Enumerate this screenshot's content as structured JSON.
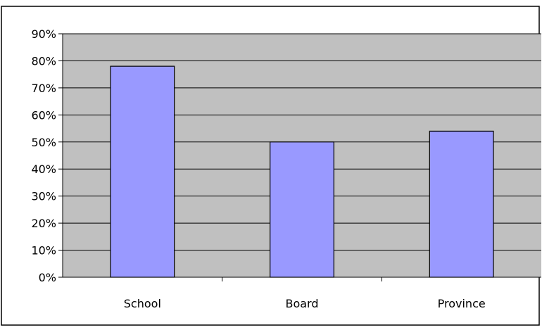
{
  "chart_data": {
    "type": "bar",
    "categories": [
      "School",
      "Board",
      "Province"
    ],
    "values": [
      0.78,
      0.5,
      0.54
    ],
    "value_format": "percent",
    "ylim": [
      0,
      0.9
    ],
    "y_ticks": [
      "0%",
      "10%",
      "20%",
      "30%",
      "40%",
      "50%",
      "60%",
      "70%",
      "80%",
      "90%"
    ],
    "title": "",
    "xlabel": "",
    "ylabel": "",
    "grid": true,
    "legend": "none",
    "colors": {
      "bar_fill": "#9999ff",
      "bar_stroke": "#000000",
      "plot_background": "#c0c0c0",
      "chart_background": "#ffffff",
      "gridline": "#000000"
    }
  }
}
